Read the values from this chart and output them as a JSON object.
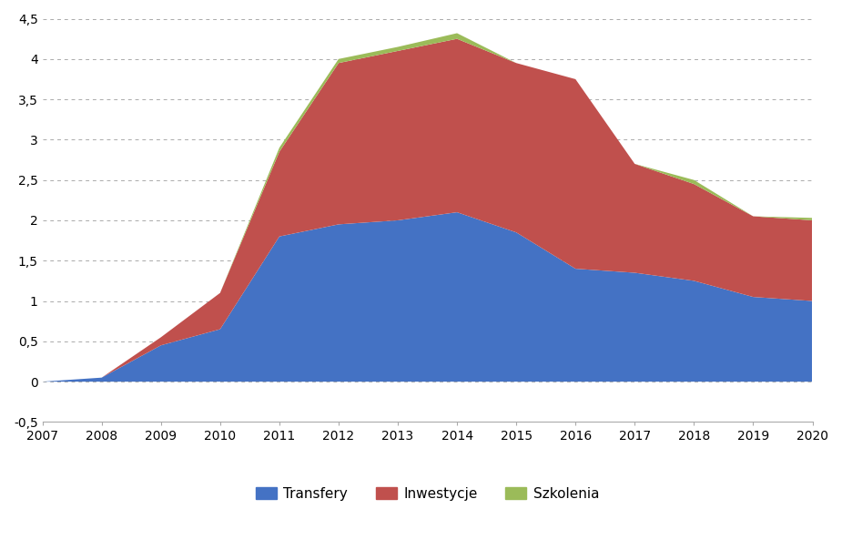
{
  "years": [
    2007,
    2008,
    2009,
    2010,
    2011,
    2012,
    2013,
    2014,
    2015,
    2016,
    2017,
    2018,
    2019,
    2020
  ],
  "transfery": [
    0.0,
    0.05,
    0.45,
    0.65,
    1.8,
    1.95,
    2.0,
    2.1,
    1.85,
    1.4,
    1.35,
    1.25,
    1.05,
    1.0
  ],
  "inwestycje": [
    0.0,
    0.0,
    0.1,
    0.45,
    1.05,
    2.0,
    2.1,
    2.15,
    2.1,
    2.35,
    1.35,
    1.2,
    1.0,
    1.0
  ],
  "szkolenia": [
    0.0,
    0.0,
    0.0,
    0.0,
    0.05,
    0.05,
    0.05,
    0.07,
    0.0,
    0.0,
    0.0,
    0.05,
    0.0,
    0.03
  ],
  "color_transfery": "#4472C4",
  "color_inwestycje": "#C0504D",
  "color_szkolenia": "#9BBB59",
  "ylim_min": -0.5,
  "ylim_max": 4.5,
  "yticks": [
    -0.5,
    0.0,
    0.5,
    1.0,
    1.5,
    2.0,
    2.5,
    3.0,
    3.5,
    4.0,
    4.5
  ],
  "ytick_labels": [
    "-0,5",
    "0",
    "0,5",
    "1",
    "1,5",
    "2",
    "2,5",
    "3",
    "3,5",
    "4",
    "4,5"
  ],
  "legend_labels": [
    "Transfery",
    "Inwestycje",
    "Szkolenia"
  ],
  "background_color": "#FFFFFF",
  "grid_color": "#AAAAAA"
}
